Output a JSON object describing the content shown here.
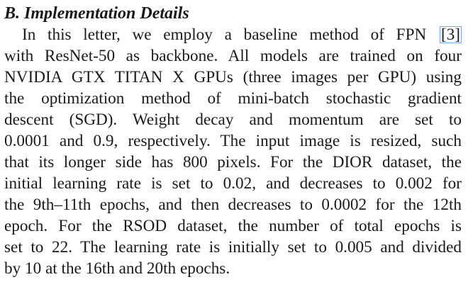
{
  "section": {
    "heading": "B. Implementation Details"
  },
  "paragraph": {
    "lines": [
      "In this letter, we employ a baseline method of FPN",
      "with ResNet-50 as backbone. All models are trained on four",
      "NVIDIA GTX TITAN X GPUs (three images per GPU) using",
      "the optimization method of mini-batch stochastic gradient",
      "descent (SGD). Weight decay and momentum are set to",
      "0.0001 and 0.9, respectively. The input image is resized, such",
      "that its longer side has 800 pixels. For the DIOR dataset, the",
      "initial learning rate is set to 0.02, and decreases to 0.002 for",
      "the 9th–11th epochs, and then decreases to 0.0002 for the 12th",
      "epoch. For the RSOD dataset, the number of total epochs is",
      "set to 22. The learning rate is initially set to 0.005 and divided",
      "by 10 at the 16th and 20th epochs."
    ],
    "citation": "[3]"
  },
  "colors": {
    "text": "#1a1a1a",
    "citation_box": "#7aa6ff"
  }
}
